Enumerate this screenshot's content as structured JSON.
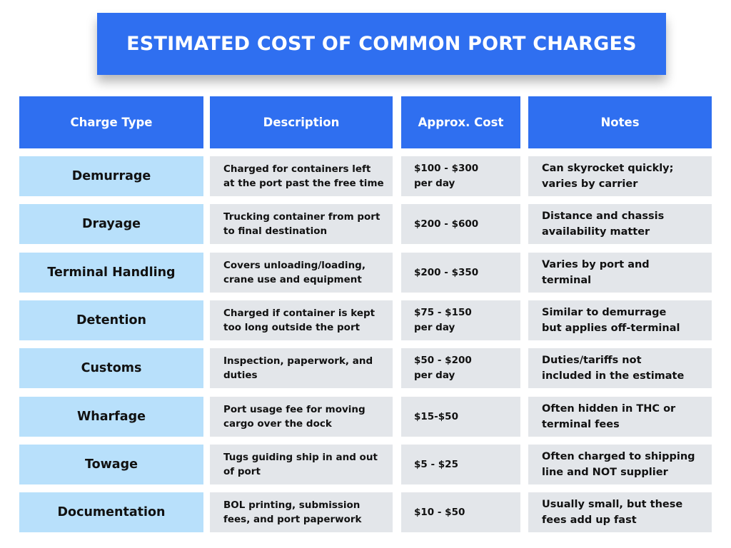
{
  "title": "ESTIMATED COST OF COMMON PORT CHARGES",
  "colors": {
    "accent_blue": "#2f6ff0",
    "light_blue": "#b8e0fb",
    "cell_gray": "#e3e6ea"
  },
  "table": {
    "headers": [
      "Charge Type",
      "Description",
      "Approx. Cost",
      "Notes"
    ],
    "rows": [
      {
        "charge_type": "Demurrage",
        "description": "Charged for containers left\nat the port past the free time",
        "cost": "$100 - $300\nper day",
        "notes": "Can skyrocket quickly;\nvaries by carrier"
      },
      {
        "charge_type": "Drayage",
        "description": "Trucking container from port\nto final destination",
        "cost": "$200 - $600",
        "notes": "Distance and chassis\navailability matter"
      },
      {
        "charge_type": "Terminal Handling",
        "description": "Covers unloading/loading,\ncrane use and equipment",
        "cost": "$200 - $350",
        "notes": "Varies by port and\nterminal"
      },
      {
        "charge_type": "Detention",
        "description": "Charged if container is kept\ntoo long outside the port",
        "cost": "$75 - $150\nper day",
        "notes": "Similar to demurrage\nbut applies off-terminal"
      },
      {
        "charge_type": "Customs",
        "description": "Inspection, paperwork, and\nduties",
        "cost": "$50 - $200\nper day",
        "notes": "Duties/tariffs not\nincluded in the estimate"
      },
      {
        "charge_type": "Wharfage",
        "description": "Port usage fee for moving\ncargo over the dock",
        "cost": "$15-$50",
        "notes": "Often hidden in THC or\nterminal fees"
      },
      {
        "charge_type": "Towage",
        "description": "Tugs guiding ship in and out\nof port",
        "cost": "$5 - $25",
        "notes": "Often charged to shipping\nline and NOT supplier"
      },
      {
        "charge_type": "Documentation",
        "description": "BOL printing, submission\nfees, and port paperwork",
        "cost": "$10 - $50",
        "notes": "Usually small, but these\nfees add up fast"
      }
    ]
  }
}
